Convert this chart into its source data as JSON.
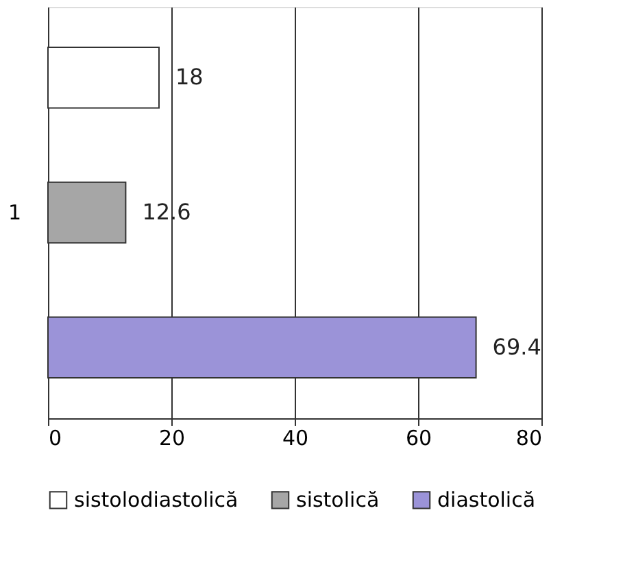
{
  "chart_data": {
    "type": "bar",
    "orientation": "horizontal",
    "categories": [
      null,
      "1",
      null
    ],
    "series": [
      {
        "name": "sistolodiastolică",
        "color": "#ffffff",
        "values": [
          18,
          null,
          null
        ]
      },
      {
        "name": "sistolică",
        "color": "#a6a6a6",
        "values": [
          null,
          12.6,
          null
        ]
      },
      {
        "name": "diastolică",
        "color": "#9b93d8",
        "values": [
          null,
          null,
          69.4
        ]
      }
    ],
    "xlim": [
      0,
      80
    ],
    "xticks": [
      0,
      20,
      40,
      60,
      80
    ],
    "grid": "x",
    "legend": "bottom",
    "data_labels": true
  }
}
